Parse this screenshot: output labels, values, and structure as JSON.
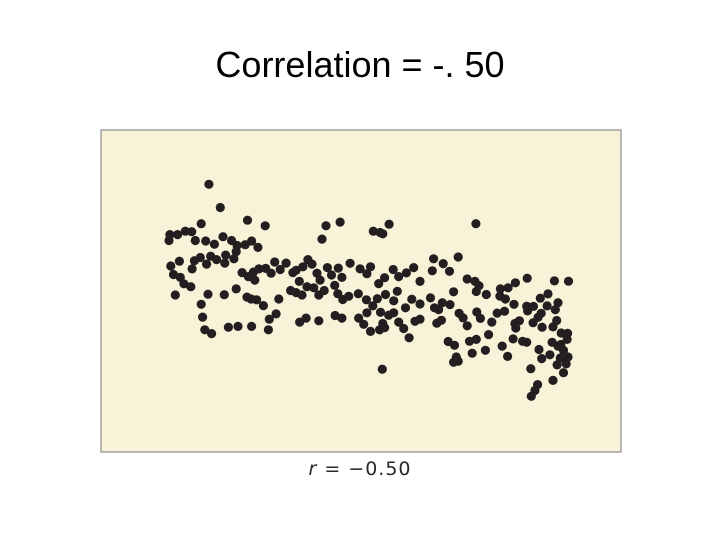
{
  "slide": {
    "title": "Correlation = -. 50",
    "caption_var": "r",
    "caption_rest": " = −0.50"
  },
  "colors": {
    "plot_background": "#f8f2d9",
    "plot_border": "#777777",
    "point_fill": "#231f20"
  },
  "chart_data": {
    "type": "scatter",
    "title": "",
    "xlabel": "",
    "ylabel": "",
    "grid": false,
    "xlim": [
      0,
      100
    ],
    "ylim": [
      0,
      100
    ],
    "r": -0.5,
    "points": [
      [
        16.5,
        90.1
      ],
      [
        19.0,
        81.4
      ],
      [
        25.0,
        76.6
      ],
      [
        28.9,
        74.5
      ],
      [
        42.3,
        74.5
      ],
      [
        45.4,
        75.9
      ],
      [
        54.8,
        71.5
      ],
      [
        56.2,
        75.1
      ],
      [
        75.3,
        75.3
      ],
      [
        14.8,
        75.3
      ],
      [
        12.7,
        72.3
      ],
      [
        11.3,
        72.5
      ],
      [
        9.6,
        71.2
      ],
      [
        7.9,
        71.2
      ],
      [
        7.7,
        69.0
      ],
      [
        13.5,
        69.0
      ],
      [
        15.8,
        68.8
      ],
      [
        17.7,
        67.6
      ],
      [
        19.6,
        70.4
      ],
      [
        21.5,
        69.0
      ],
      [
        22.7,
        67.1
      ],
      [
        24.5,
        67.4
      ],
      [
        25.9,
        68.8
      ],
      [
        27.3,
        66.4
      ],
      [
        41.4,
        69.5
      ],
      [
        52.7,
        72.5
      ],
      [
        54.2,
        72.0
      ],
      [
        8.1,
        59.4
      ],
      [
        8.7,
        56.2
      ],
      [
        10.2,
        55.1
      ],
      [
        10.0,
        61.2
      ],
      [
        12.8,
        58.3
      ],
      [
        13.3,
        61.4
      ],
      [
        14.6,
        62.6
      ],
      [
        16.0,
        60.1
      ],
      [
        16.9,
        63.1
      ],
      [
        18.2,
        61.8
      ],
      [
        20.0,
        60.5
      ],
      [
        20.2,
        63.5
      ],
      [
        22.0,
        62.1
      ],
      [
        22.5,
        64.8
      ],
      [
        23.8,
        56.9
      ],
      [
        25.2,
        55.4
      ],
      [
        26.3,
        57.1
      ],
      [
        26.6,
        54.1
      ],
      [
        27.5,
        58.3
      ],
      [
        29.0,
        58.5
      ],
      [
        30.2,
        56.7
      ],
      [
        31.0,
        60.9
      ],
      [
        32.2,
        58.1
      ],
      [
        33.5,
        60.5
      ],
      [
        35.0,
        56.9
      ],
      [
        35.7,
        57.8
      ],
      [
        36.4,
        53.6
      ],
      [
        37.2,
        59.1
      ],
      [
        38.3,
        61.8
      ],
      [
        39.2,
        60.1
      ],
      [
        40.3,
        56.7
      ],
      [
        41.0,
        54.1
      ],
      [
        42.6,
        58.8
      ],
      [
        43.5,
        56.0
      ],
      [
        44.2,
        52.1
      ],
      [
        45.0,
        58.6
      ],
      [
        45.8,
        55.1
      ],
      [
        47.6,
        60.4
      ],
      [
        49.8,
        58.3
      ],
      [
        51.3,
        56.5
      ],
      [
        52.1,
        59.1
      ],
      [
        53.9,
        52.8
      ],
      [
        55.2,
        55.0
      ],
      [
        57.1,
        58.1
      ],
      [
        58.3,
        55.4
      ],
      [
        60.0,
        56.8
      ],
      [
        61.6,
        58.8
      ],
      [
        63.0,
        53.6
      ],
      [
        65.7,
        57.6
      ],
      [
        66.0,
        62.1
      ],
      [
        68.1,
        60.3
      ],
      [
        69.5,
        57.4
      ],
      [
        71.4,
        62.8
      ],
      [
        9.1,
        48.5
      ],
      [
        11.0,
        52.7
      ],
      [
        12.5,
        51.6
      ],
      [
        14.8,
        45.0
      ],
      [
        16.3,
        48.8
      ],
      [
        19.9,
        48.6
      ],
      [
        22.5,
        50.8
      ],
      [
        24.9,
        47.7
      ],
      [
        25.8,
        47.0
      ],
      [
        27.0,
        46.7
      ],
      [
        28.5,
        44.5
      ],
      [
        31.9,
        47.0
      ],
      [
        34.5,
        50.2
      ],
      [
        35.7,
        49.4
      ],
      [
        37.0,
        48.5
      ],
      [
        38.1,
        51.6
      ],
      [
        39.6,
        51.2
      ],
      [
        40.7,
        48.5
      ],
      [
        41.9,
        50.2
      ],
      [
        44.9,
        49.0
      ],
      [
        46.0,
        46.8
      ],
      [
        47.3,
        48.0
      ],
      [
        49.4,
        49.0
      ],
      [
        51.2,
        46.7
      ],
      [
        52.6,
        44.4
      ],
      [
        53.6,
        47.1
      ],
      [
        55.4,
        48.7
      ],
      [
        57.2,
        46.3
      ],
      [
        58.0,
        49.9
      ],
      [
        59.8,
        43.7
      ],
      [
        61.2,
        46.9
      ],
      [
        63.0,
        45.1
      ],
      [
        65.3,
        47.4
      ],
      [
        66.2,
        43.7
      ],
      [
        67.1,
        43.0
      ],
      [
        67.9,
        45.6
      ],
      [
        69.6,
        44.9
      ],
      [
        70.4,
        49.7
      ],
      [
        15.1,
        40.2
      ],
      [
        22.9,
        36.7
      ],
      [
        25.9,
        36.7
      ],
      [
        29.8,
        39.4
      ],
      [
        31.3,
        41.4
      ],
      [
        36.5,
        38.3
      ],
      [
        37.9,
        39.8
      ],
      [
        40.7,
        38.8
      ],
      [
        45.8,
        39.8
      ],
      [
        49.5,
        39.8
      ],
      [
        50.6,
        37.5
      ],
      [
        51.3,
        41.8
      ],
      [
        54.3,
        42.0
      ],
      [
        54.8,
        37.8
      ],
      [
        56.1,
        40.9
      ],
      [
        57.2,
        41.8
      ],
      [
        58.3,
        38.3
      ],
      [
        59.4,
        35.9
      ],
      [
        61.9,
        38.6
      ],
      [
        63.0,
        39.4
      ],
      [
        66.7,
        37.9
      ],
      [
        67.7,
        39.0
      ],
      [
        71.6,
        41.6
      ],
      [
        72.5,
        39.9
      ],
      [
        75.5,
        42.1
      ],
      [
        76.3,
        39.7
      ],
      [
        78.8,
        38.3
      ],
      [
        80.0,
        41.7
      ],
      [
        81.6,
        42.4
      ],
      [
        83.9,
        37.8
      ],
      [
        84.9,
        38.8
      ],
      [
        86.7,
        42.5
      ],
      [
        87.9,
        38.1
      ],
      [
        89.0,
        40.1
      ],
      [
        89.9,
        36.4
      ],
      [
        92.3,
        36.5
      ],
      [
        93.1,
        38.9
      ],
      [
        94.1,
        34.2
      ],
      [
        95.4,
        31.8
      ],
      [
        73.4,
        54.5
      ],
      [
        75.1,
        53.6
      ],
      [
        76.0,
        52.0
      ],
      [
        75.4,
        49.8
      ],
      [
        77.6,
        48.7
      ],
      [
        80.7,
        50.8
      ],
      [
        82.4,
        51.2
      ],
      [
        84.0,
        53.1
      ],
      [
        86.6,
        54.8
      ],
      [
        89.5,
        47.3
      ],
      [
        91.2,
        48.9
      ],
      [
        92.6,
        53.8
      ],
      [
        93.4,
        45.6
      ],
      [
        95.7,
        53.7
      ],
      [
        80.6,
        48.1
      ],
      [
        81.8,
        47.0
      ],
      [
        83.7,
        45.0
      ],
      [
        86.5,
        44.3
      ],
      [
        88.0,
        44.2
      ],
      [
        89.7,
        41.6
      ],
      [
        91.0,
        44.4
      ],
      [
        92.8,
        43.0
      ],
      [
        15.6,
        35.4
      ],
      [
        17.1,
        34.0
      ],
      [
        20.8,
        36.4
      ],
      [
        29.6,
        35.4
      ],
      [
        44.3,
        40.8
      ],
      [
        52.1,
        34.8
      ],
      [
        54.1,
        35.4
      ],
      [
        55.2,
        36.2
      ],
      [
        60.6,
        32.4
      ],
      [
        69.2,
        31.0
      ],
      [
        70.6,
        29.6
      ],
      [
        75.4,
        31.8
      ],
      [
        78.1,
        33.6
      ],
      [
        71.0,
        25.2
      ],
      [
        71.4,
        23.6
      ],
      [
        70.4,
        23.2
      ],
      [
        81.1,
        29.3
      ],
      [
        83.5,
        32.0
      ],
      [
        86.5,
        30.7
      ],
      [
        89.2,
        28.0
      ],
      [
        92.1,
        30.7
      ],
      [
        93.4,
        29.3
      ],
      [
        94.6,
        27.7
      ],
      [
        95.6,
        25.2
      ],
      [
        77.4,
        27.7
      ],
      [
        82.3,
        25.4
      ],
      [
        54.7,
        20.6
      ],
      [
        87.4,
        20.8
      ],
      [
        92.3,
        16.4
      ],
      [
        88.9,
        14.8
      ],
      [
        87.5,
        10.4
      ],
      [
        88.3,
        12.6
      ],
      [
        93.2,
        22.2
      ],
      [
        94.6,
        19.3
      ],
      [
        89.8,
        24.6
      ],
      [
        91.6,
        26.0
      ],
      [
        93.9,
        24.8
      ],
      [
        95.2,
        22.6
      ],
      [
        94.0,
        29.9
      ],
      [
        95.5,
        34.1
      ],
      [
        73.4,
        36.9
      ],
      [
        74.5,
        26.6
      ],
      [
        73.9,
        31.1
      ],
      [
        84.1,
        36.1
      ],
      [
        85.6,
        31.1
      ]
    ]
  }
}
